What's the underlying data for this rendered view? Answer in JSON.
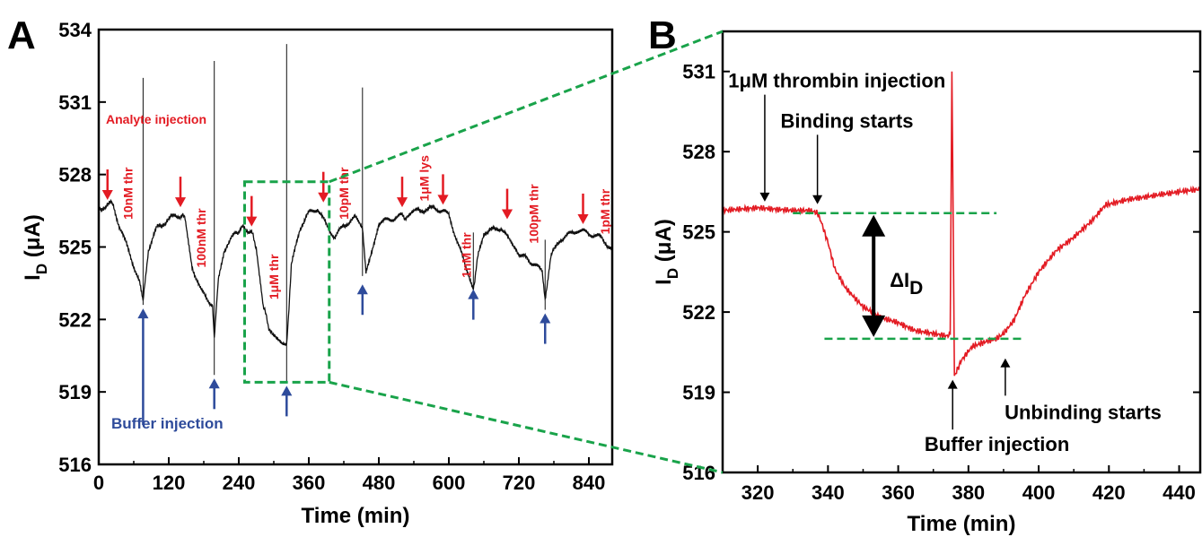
{
  "colors": {
    "trace_a": "#111111",
    "trace_b": "#e31b23",
    "analyte_arrow": "#e31b23",
    "buffer_arrow": "#2e4b9b",
    "guide": "#19a34a",
    "axis": "#000000"
  },
  "chart_data": [
    {
      "type": "line",
      "panel_label": "A",
      "xlabel": "Time (min)",
      "ylabel_main": "I",
      "ylabel_sub": "D",
      "ylabel_unit": " (μA)",
      "xlim": [
        0,
        880
      ],
      "ylim": [
        516,
        534
      ],
      "xticks": [
        0,
        120,
        240,
        360,
        480,
        600,
        720,
        840
      ],
      "yticks": [
        516,
        519,
        522,
        525,
        528,
        531,
        534
      ],
      "x": [
        0,
        15,
        20,
        25,
        35,
        55,
        70,
        76,
        85,
        100,
        130,
        140,
        148,
        160,
        175,
        195,
        198,
        205,
        215,
        235,
        248,
        262,
        270,
        282,
        290,
        298,
        315,
        322,
        330,
        345,
        360,
        375,
        390,
        405,
        420,
        440,
        452,
        458,
        480,
        520,
        528,
        545,
        575,
        590,
        600,
        630,
        642,
        650,
        660,
        690,
        700,
        712,
        740,
        760,
        765,
        775,
        790,
        820,
        835,
        860,
        880
      ],
      "values": [
        526.6,
        526.7,
        526.8,
        526.7,
        525.9,
        524.6,
        523.5,
        522.7,
        524.9,
        525.8,
        526.3,
        526.3,
        526.2,
        524.2,
        523.2,
        522.6,
        521.2,
        523.6,
        524.9,
        525.6,
        525.8,
        525.6,
        525.0,
        522.6,
        521.8,
        521.3,
        521.0,
        520.9,
        524.2,
        525.8,
        526.4,
        526.6,
        525.9,
        525.4,
        525.9,
        526.2,
        525.7,
        523.9,
        526.0,
        526.3,
        526.2,
        526.5,
        526.6,
        526.5,
        526.3,
        524.1,
        523.3,
        524.6,
        525.6,
        525.8,
        525.4,
        524.9,
        524.4,
        524.0,
        522.9,
        524.6,
        525.3,
        525.7,
        525.6,
        525.4,
        524.9
      ],
      "spikes": [
        {
          "x": 76,
          "top": 532.0,
          "bottom": 522.6
        },
        {
          "x": 198,
          "top": 532.7,
          "bottom": 519.7
        },
        {
          "x": 322,
          "top": 533.4,
          "bottom": 519.4
        },
        {
          "x": 452,
          "top": 531.6,
          "bottom": 523.8
        },
        {
          "x": 642,
          "top": 525.6,
          "bottom": 523.2
        },
        {
          "x": 765,
          "top": 525.3,
          "bottom": 522.4
        }
      ],
      "analyte_injection_label": "Analyte injection",
      "buffer_injection_label": "Buffer injection",
      "analyte_arrows": [
        {
          "x": 15,
          "tip": 526.8,
          "label": ""
        },
        {
          "x": 140,
          "tip": 526.5,
          "label": ""
        },
        {
          "x": 262,
          "tip": 525.7,
          "label": ""
        },
        {
          "x": 385,
          "tip": 526.7,
          "label": ""
        },
        {
          "x": 520,
          "tip": 526.5,
          "label": ""
        },
        {
          "x": 590,
          "tip": 526.6,
          "label": ""
        },
        {
          "x": 700,
          "tip": 526.0,
          "label": ""
        },
        {
          "x": 830,
          "tip": 525.8,
          "label": ""
        }
      ],
      "sample_labels": [
        {
          "x": 50,
          "top": 528.3,
          "text": "10nM thr"
        },
        {
          "x": 175,
          "top": 526.6,
          "text": "100nM thr"
        },
        {
          "x": 300,
          "top": 524.7,
          "text": "1μM thr"
        },
        {
          "x": 420,
          "top": 528.3,
          "text": "10pM thr"
        },
        {
          "x": 558,
          "top": 528.8,
          "text": "1μM lys"
        },
        {
          "x": 630,
          "top": 525.6,
          "text": "1nM thr"
        },
        {
          "x": 745,
          "top": 527.6,
          "text": "100pM thr"
        },
        {
          "x": 868,
          "top": 527.4,
          "text": "1pM thr"
        }
      ],
      "buffer_arrows": [
        {
          "x": 76,
          "tip": 522.6
        },
        {
          "x": 198,
          "tip": 519.7
        },
        {
          "x": 322,
          "tip": 519.4
        },
        {
          "x": 452,
          "tip": 523.6
        },
        {
          "x": 642,
          "tip": 523.4
        },
        {
          "x": 765,
          "tip": 522.4
        }
      ],
      "zoom_box": {
        "x0": 250,
        "x1": 395,
        "y0": 519.4,
        "y1": 527.7
      }
    },
    {
      "type": "line",
      "panel_label": "B",
      "xlabel": "Time (min)",
      "ylabel_main": "I",
      "ylabel_sub": "D",
      "ylabel_unit": " (μA)",
      "xlim": [
        310,
        446
      ],
      "ylim": [
        516,
        532.5
      ],
      "xticks": [
        320,
        340,
        360,
        380,
        400,
        420,
        440
      ],
      "yticks": [
        516,
        519,
        522,
        525,
        528,
        531
      ],
      "x": [
        310,
        320,
        330,
        335,
        337,
        338,
        340,
        342,
        345,
        350,
        355,
        360,
        365,
        370,
        374,
        375,
        375.3,
        376,
        378,
        381,
        385,
        388,
        390,
        393,
        396,
        400,
        405,
        410,
        415,
        419,
        425,
        430,
        435,
        440,
        446
      ],
      "values": [
        525.8,
        525.9,
        525.8,
        525.8,
        525.7,
        525.4,
        524.6,
        523.6,
        522.9,
        522.2,
        521.8,
        521.6,
        521.3,
        521.2,
        521.1,
        521.2,
        531.0,
        519.6,
        520.2,
        520.7,
        520.9,
        521.0,
        521.2,
        521.7,
        522.6,
        523.5,
        524.3,
        524.8,
        525.4,
        526.0,
        526.2,
        526.3,
        526.4,
        526.5,
        526.6
      ],
      "upper_guide": {
        "x0": 330,
        "x1": 388,
        "y": 525.7
      },
      "lower_guide": {
        "x0": 339,
        "x1": 396,
        "y": 521.0
      },
      "delta_label_main": "ΔI",
      "delta_label_sub": "D",
      "annotations": [
        {
          "text": "1μM thrombin injection",
          "x": 311.6,
          "y": 530.4,
          "arrow_x": 322,
          "tip": 526.0
        },
        {
          "text": "Binding starts",
          "x": 326.5,
          "y": 528.9,
          "arrow_x": 337,
          "tip": 525.9
        },
        {
          "text": "Unbinding starts",
          "x": 390.3,
          "y": 518.0,
          "arrow_x": 390.5,
          "tip": 520.4
        },
        {
          "text": "Buffer injection",
          "x": 367.5,
          "y": 516.8,
          "arrow_x": 375.5,
          "tip": 519.6
        }
      ]
    }
  ]
}
